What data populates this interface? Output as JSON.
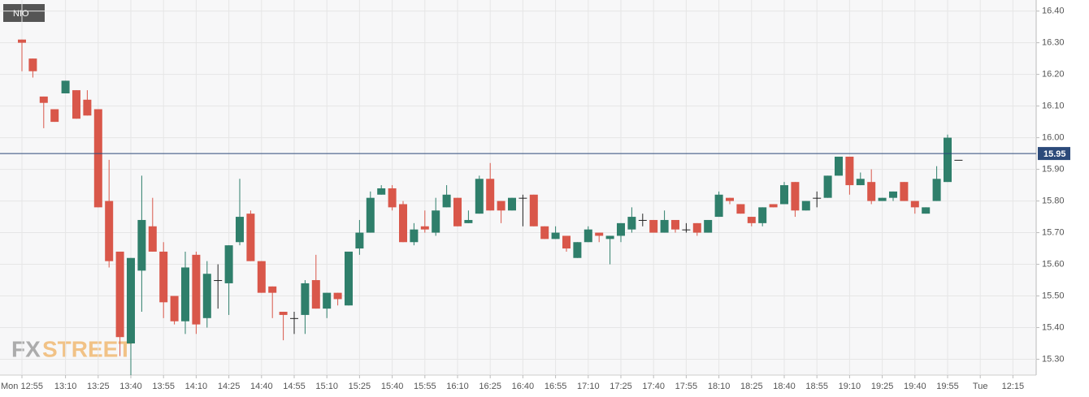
{
  "chart_data": {
    "type": "candlestick",
    "legend": "NIO",
    "watermark": [
      "FX",
      "STREET"
    ],
    "categories": [
      "Mon 12:55",
      null,
      null,
      null,
      "13:10",
      null,
      null,
      "13:25",
      null,
      null,
      "13:40",
      null,
      null,
      "13:55",
      null,
      null,
      "14:10",
      null,
      null,
      "14:25",
      null,
      null,
      "14:40",
      null,
      null,
      "14:55",
      null,
      null,
      "15:10",
      null,
      null,
      "15:25",
      null,
      null,
      "15:40",
      null,
      null,
      "15:55",
      null,
      null,
      "16:10",
      null,
      null,
      "16:25",
      null,
      null,
      "16:40",
      null,
      null,
      "16:55",
      null,
      null,
      "17:10",
      null,
      null,
      "17:25",
      null,
      null,
      "17:40",
      null,
      null,
      "17:55",
      null,
      null,
      "18:10",
      null,
      null,
      "18:25",
      null,
      null,
      "18:40",
      null,
      null,
      "18:55",
      null,
      null,
      "19:10",
      null,
      null,
      "19:25",
      null,
      null,
      "19:40",
      null,
      null,
      "19:55",
      null,
      null,
      "Tue",
      null,
      null,
      "12:15"
    ],
    "open": [
      16.31,
      16.25,
      16.13,
      16.09,
      16.14,
      16.15,
      16.12,
      16.09,
      15.8,
      15.64,
      15.35,
      15.58,
      15.72,
      15.64,
      15.5,
      15.42,
      15.63,
      15.43,
      15.55,
      15.54,
      15.67,
      15.76,
      15.61,
      15.53,
      15.45,
      15.43,
      15.44,
      15.55,
      15.46,
      15.51,
      15.47,
      15.65,
      15.7,
      15.82,
      15.84,
      15.79,
      15.67,
      15.72,
      15.7,
      15.78,
      15.81,
      15.73,
      15.76,
      15.87,
      15.8,
      15.77,
      15.81,
      15.82,
      15.72,
      15.68,
      15.69,
      15.62,
      15.67,
      15.7,
      15.68,
      15.69,
      15.71,
      15.74,
      15.74,
      15.7,
      15.74,
      15.71,
      15.73,
      15.7,
      15.75,
      15.81,
      15.79,
      15.75,
      15.73,
      15.79,
      15.79,
      15.86,
      15.77,
      15.81,
      15.81,
      15.88,
      15.94,
      15.85,
      15.86,
      15.8,
      15.81,
      15.86,
      15.8,
      15.76,
      15.8,
      15.86,
      15.93,
      null,
      null,
      null,
      null,
      null
    ],
    "high": [
      16.31,
      16.25,
      16.13,
      16.09,
      16.18,
      16.15,
      16.15,
      16.09,
      15.93,
      15.64,
      15.62,
      15.88,
      15.81,
      15.67,
      15.5,
      15.64,
      15.64,
      15.61,
      15.6,
      15.66,
      15.87,
      15.77,
      15.61,
      15.53,
      15.45,
      15.45,
      15.55,
      15.63,
      15.51,
      15.51,
      15.64,
      15.74,
      15.83,
      15.85,
      15.85,
      15.8,
      15.73,
      15.77,
      15.81,
      15.85,
      15.81,
      15.77,
      15.88,
      15.92,
      15.8,
      15.81,
      15.82,
      15.82,
      15.72,
      15.72,
      15.69,
      15.67,
      15.72,
      15.7,
      15.69,
      15.73,
      15.78,
      15.76,
      15.74,
      15.77,
      15.74,
      15.73,
      15.73,
      15.74,
      15.83,
      15.81,
      15.79,
      15.75,
      15.78,
      15.79,
      15.86,
      15.86,
      15.8,
      15.83,
      15.88,
      15.94,
      15.94,
      15.89,
      15.9,
      15.81,
      15.83,
      15.86,
      15.8,
      15.78,
      15.91,
      16.01,
      15.93,
      null,
      null,
      null,
      null,
      null
    ],
    "low": [
      16.21,
      16.19,
      16.03,
      16.05,
      16.14,
      16.06,
      16.07,
      15.78,
      15.59,
      15.31,
      15.25,
      15.45,
      15.64,
      15.43,
      15.41,
      15.38,
      15.38,
      15.4,
      15.46,
      15.44,
      15.66,
      15.61,
      15.51,
      15.43,
      15.36,
      15.38,
      15.38,
      15.46,
      15.43,
      15.47,
      15.47,
      15.63,
      15.7,
      15.82,
      15.77,
      15.67,
      15.66,
      15.7,
      15.69,
      15.78,
      15.72,
      15.73,
      15.76,
      15.77,
      15.73,
      15.77,
      15.72,
      15.72,
      15.68,
      15.68,
      15.64,
      15.62,
      15.67,
      15.67,
      15.6,
      15.67,
      15.7,
      15.72,
      15.7,
      15.7,
      15.7,
      15.7,
      15.69,
      15.7,
      15.75,
      15.79,
      15.76,
      15.72,
      15.72,
      15.78,
      15.79,
      15.75,
      15.77,
      15.78,
      15.81,
      15.88,
      15.82,
      15.85,
      15.79,
      15.8,
      15.8,
      15.8,
      15.76,
      15.76,
      15.8,
      15.86,
      15.93,
      null,
      null,
      null,
      null,
      null
    ],
    "close": [
      16.3,
      16.21,
      16.11,
      16.05,
      16.18,
      16.06,
      16.07,
      15.78,
      15.61,
      15.37,
      15.62,
      15.74,
      15.64,
      15.48,
      15.42,
      15.59,
      15.41,
      15.57,
      15.55,
      15.66,
      15.75,
      15.61,
      15.51,
      15.51,
      15.44,
      15.43,
      15.54,
      15.46,
      15.51,
      15.49,
      15.64,
      15.7,
      15.81,
      15.84,
      15.78,
      15.67,
      15.71,
      15.71,
      15.77,
      15.82,
      15.72,
      15.74,
      15.87,
      15.77,
      15.77,
      15.81,
      15.81,
      15.72,
      15.68,
      15.7,
      15.65,
      15.67,
      15.71,
      15.69,
      15.69,
      15.73,
      15.75,
      15.74,
      15.7,
      15.74,
      15.71,
      15.71,
      15.7,
      15.74,
      15.82,
      15.8,
      15.76,
      15.73,
      15.78,
      15.78,
      15.85,
      15.77,
      15.8,
      15.81,
      15.88,
      15.94,
      15.85,
      15.87,
      15.8,
      15.81,
      15.83,
      15.8,
      15.78,
      15.78,
      15.87,
      16.0,
      15.93,
      null,
      null,
      null,
      null,
      null
    ],
    "up_color": "#2f7f6b",
    "down_color": "#d9574a",
    "doji_color": "#222222",
    "price_line": 15.95,
    "price_line_color": "#2c4a7a",
    "ylim": [
      15.25,
      16.435
    ],
    "yticks": [
      {
        "value": 15.3,
        "label": "15.30"
      },
      {
        "value": 15.4,
        "label": "15.40"
      },
      {
        "value": 15.5,
        "label": "15.50"
      },
      {
        "value": 15.6,
        "label": "15.60"
      },
      {
        "value": 15.7,
        "label": "15.70"
      },
      {
        "value": 15.8,
        "label": "15.80"
      },
      {
        "value": 15.9,
        "label": "15.90"
      },
      {
        "value": 16.0,
        "label": "16.00"
      },
      {
        "value": 16.1,
        "label": "16.10"
      },
      {
        "value": 16.2,
        "label": "16.20"
      },
      {
        "value": 16.3,
        "label": "16.30"
      },
      {
        "value": 16.4,
        "label": "16.40"
      }
    ],
    "grid": true
  }
}
